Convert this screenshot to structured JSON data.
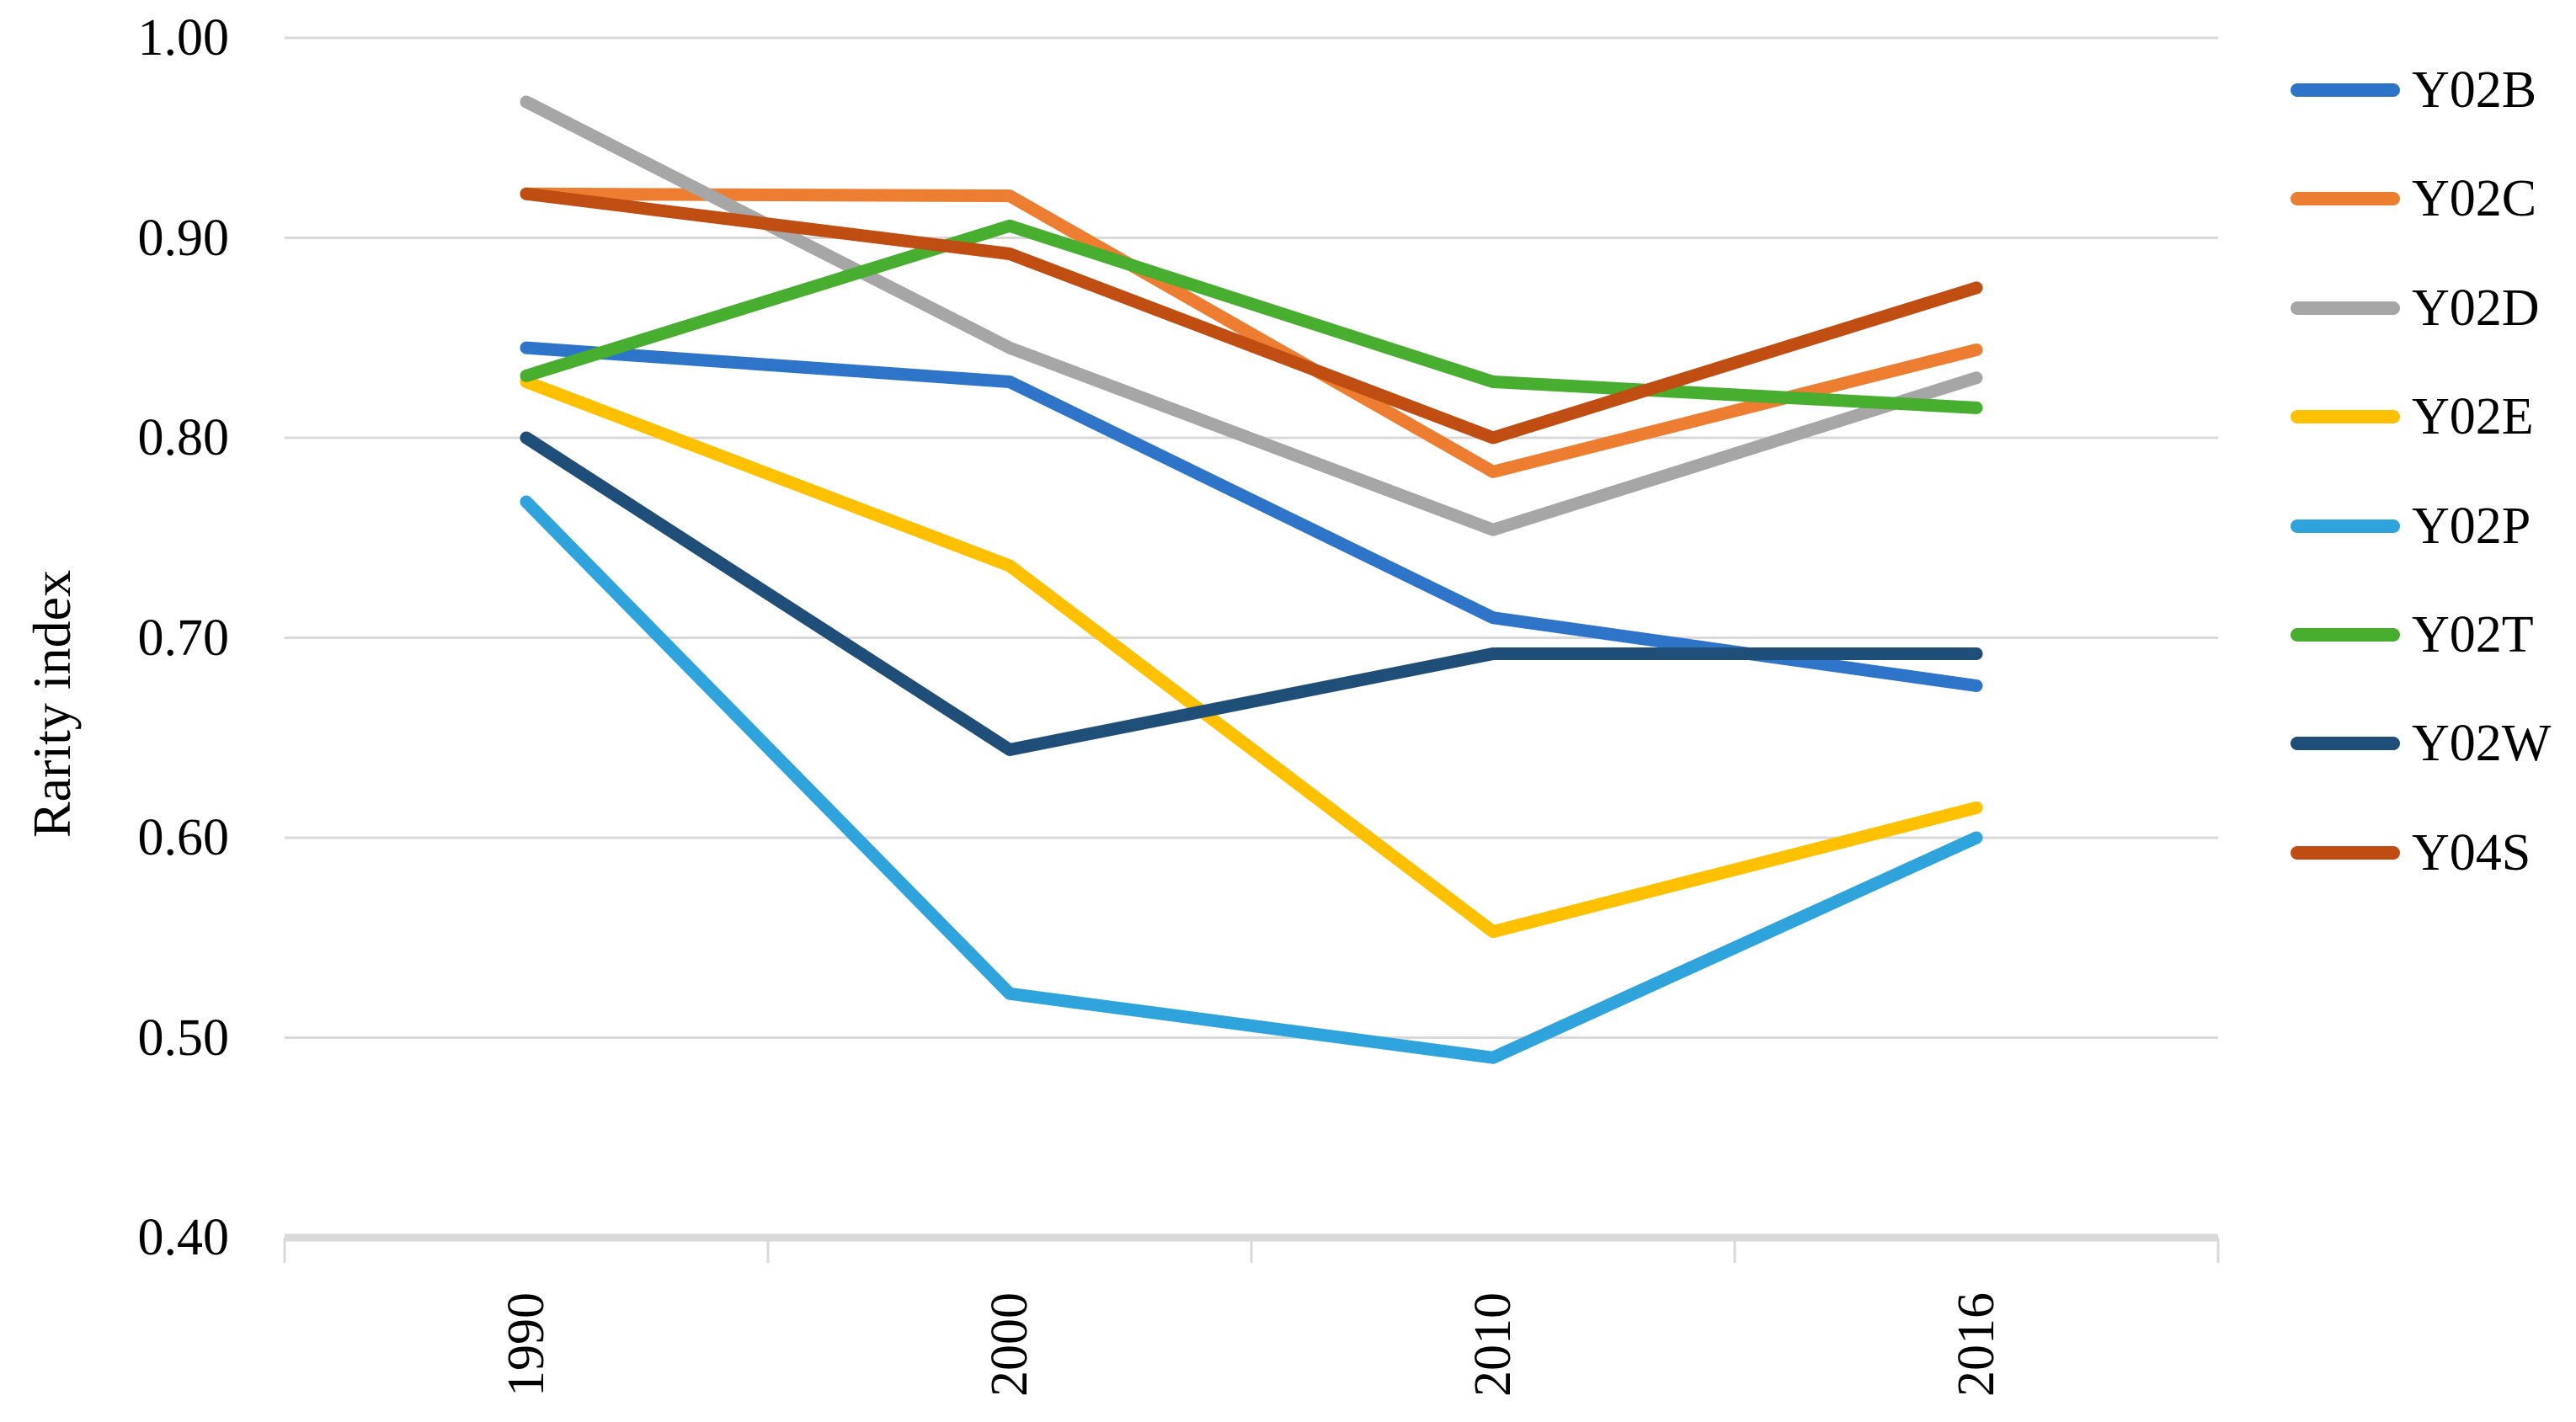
{
  "chart_data": {
    "type": "line",
    "title": "",
    "xlabel": "",
    "ylabel": "Rarity index",
    "categories": [
      "1990",
      "2000",
      "2010",
      "2016"
    ],
    "y_ticks": [
      "1.00",
      "0.90",
      "0.80",
      "0.70",
      "0.60",
      "0.50",
      "0.40"
    ],
    "ylim": [
      0.4,
      1.0
    ],
    "grid": "horizontal",
    "gridline_color": "#D9D9D9",
    "text_color": "#000000",
    "legend_position": "right",
    "series": [
      {
        "name": "Y02B",
        "color": "#2E74C9",
        "values": [
          0.845,
          0.828,
          0.71,
          0.676
        ]
      },
      {
        "name": "Y02C",
        "color": "#ED7D31",
        "values": [
          0.922,
          0.921,
          0.783,
          0.844
        ]
      },
      {
        "name": "Y02D",
        "color": "#A6A6A6",
        "values": [
          0.968,
          0.845,
          0.754,
          0.83
        ]
      },
      {
        "name": "Y02E",
        "color": "#FFC000",
        "values": [
          0.828,
          0.736,
          0.553,
          0.615
        ]
      },
      {
        "name": "Y02P",
        "color": "#2FA3DC",
        "values": [
          0.768,
          0.522,
          0.49,
          0.6
        ]
      },
      {
        "name": "Y02T",
        "color": "#47AE30",
        "values": [
          0.831,
          0.906,
          0.828,
          0.815
        ]
      },
      {
        "name": "Y02W",
        "color": "#1F4E79",
        "values": [
          0.8,
          0.644,
          0.692,
          0.692
        ]
      },
      {
        "name": "Y04S",
        "color": "#C04E12",
        "values": [
          0.922,
          0.892,
          0.8,
          0.875
        ]
      }
    ]
  }
}
